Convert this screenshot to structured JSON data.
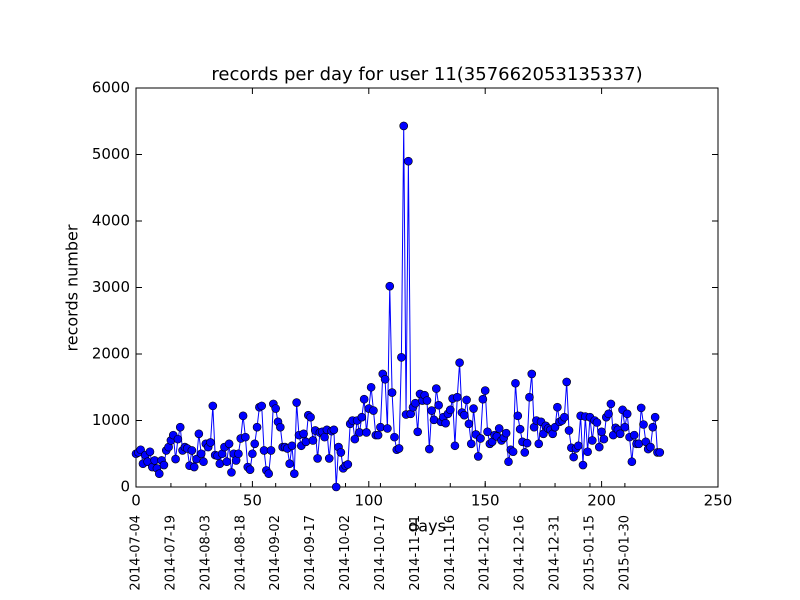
{
  "chart_data": {
    "type": "line",
    "title": "records per day for user 11(357662053135337)",
    "xlabel": "days",
    "ylabel": "records number",
    "color": "#0000ff",
    "x": [
      0,
      1,
      2,
      3,
      4,
      5,
      6,
      7,
      8,
      9,
      10,
      11,
      12,
      13,
      14,
      15,
      16,
      17,
      18,
      19,
      20,
      21,
      22,
      23,
      24,
      25,
      26,
      27,
      28,
      29,
      30,
      31,
      32,
      33,
      34,
      35,
      36,
      37,
      38,
      39,
      40,
      41,
      42,
      43,
      44,
      45,
      46,
      47,
      48,
      49,
      50,
      51,
      52,
      53,
      54,
      55,
      56,
      57,
      58,
      59,
      60,
      61,
      62,
      63,
      64,
      65,
      66,
      67,
      68,
      69,
      70,
      71,
      72,
      73,
      74,
      75,
      76,
      77,
      78,
      79,
      80,
      81,
      82,
      83,
      84,
      85,
      86,
      87,
      88,
      89,
      90,
      91,
      92,
      93,
      94,
      95,
      96,
      97,
      98,
      99,
      100,
      101,
      102,
      103,
      104,
      105,
      106,
      107,
      108,
      109,
      110,
      111,
      112,
      113,
      114,
      115,
      116,
      117,
      118,
      119,
      120,
      121,
      122,
      123,
      124,
      125,
      126,
      127,
      128,
      129,
      130,
      131,
      132,
      133,
      134,
      135,
      136,
      137,
      138,
      139,
      140,
      141,
      142,
      143,
      144,
      145,
      146,
      147,
      148,
      149,
      150,
      151,
      152,
      153,
      154,
      155,
      156,
      157,
      158,
      159,
      160,
      161,
      162,
      163,
      164,
      165,
      166,
      167,
      168,
      169,
      170,
      171,
      172,
      173,
      174,
      175,
      176,
      177,
      178,
      179,
      180,
      181,
      182,
      183,
      184,
      185,
      186,
      187,
      188,
      189,
      190,
      191,
      192,
      193,
      194,
      195,
      196,
      197,
      198,
      199,
      200,
      201,
      202,
      203,
      204,
      205,
      206,
      207,
      208,
      209,
      210,
      211,
      212,
      213,
      214,
      215,
      216,
      217,
      218,
      219,
      220,
      221,
      222,
      223,
      224,
      225
    ],
    "values": [
      500,
      520,
      560,
      350,
      480,
      380,
      530,
      300,
      400,
      280,
      200,
      400,
      330,
      550,
      600,
      700,
      780,
      420,
      720,
      900,
      550,
      600,
      580,
      320,
      550,
      300,
      420,
      800,
      500,
      380,
      650,
      600,
      670,
      1220,
      480,
      470,
      350,
      500,
      600,
      380,
      650,
      220,
      500,
      400,
      500,
      730,
      1070,
      750,
      300,
      260,
      500,
      650,
      900,
      1200,
      1220,
      550,
      250,
      200,
      550,
      1250,
      1180,
      980,
      900,
      600,
      600,
      580,
      350,
      620,
      200,
      1270,
      780,
      620,
      800,
      680,
      1080,
      1050,
      700,
      850,
      430,
      820,
      830,
      750,
      860,
      430,
      840,
      860,
      0,
      600,
      520,
      280,
      320,
      340,
      950,
      1000,
      720,
      1000,
      820,
      1050,
      1320,
      820,
      1180,
      1500,
      1150,
      780,
      780,
      900,
      1700,
      1620,
      880,
      3020,
      1420,
      750,
      560,
      580,
      1950,
      5430,
      1090,
      4900,
      1100,
      1200,
      1260,
      830,
      1400,
      1300,
      1380,
      1300,
      570,
      1150,
      1010,
      1480,
      1230,
      980,
      1050,
      960,
      1100,
      1160,
      1330,
      620,
      1350,
      1870,
      1120,
      1080,
      1310,
      950,
      650,
      1180,
      790,
      460,
      730,
      1320,
      1450,
      830,
      650,
      680,
      780,
      760,
      880,
      700,
      740,
      810,
      380,
      560,
      530,
      1560,
      1070,
      870,
      680,
      520,
      660,
      1350,
      1700,
      900,
      1000,
      650,
      980,
      800,
      920,
      880,
      860,
      800,
      900,
      1200,
      980,
      1000,
      1050,
      1580,
      850,
      590,
      450,
      580,
      620,
      1070,
      330,
      1060,
      530,
      1050,
      700,
      1000,
      970,
      600,
      830,
      720,
      1050,
      1100,
      1250,
      780,
      890,
      860,
      800,
      1160,
      900,
      1100,
      750,
      380,
      780,
      650,
      650,
      1190,
      940,
      680,
      570,
      600,
      900,
      1050,
      520,
      520
    ],
    "xlim": [
      0,
      250
    ],
    "ylim": [
      0,
      6000
    ],
    "xticks": [
      0,
      50,
      100,
      150,
      200,
      250
    ],
    "yticks": [
      0,
      1000,
      2000,
      3000,
      4000,
      5000,
      6000
    ],
    "date_ticks": [
      {
        "value": 0,
        "label": "2014-07-04"
      },
      {
        "value": 15,
        "label": "2014-07-19"
      },
      {
        "value": 30,
        "label": "2014-08-03"
      },
      {
        "value": 45,
        "label": "2014-08-18"
      },
      {
        "value": 60,
        "label": "2014-09-02"
      },
      {
        "value": 75,
        "label": "2014-09-17"
      },
      {
        "value": 90,
        "label": "2014-10-02"
      },
      {
        "value": 105,
        "label": "2014-10-17"
      },
      {
        "value": 120,
        "label": "2014-11-01"
      },
      {
        "value": 135,
        "label": "2014-11-16"
      },
      {
        "value": 150,
        "label": "2014-12-01"
      },
      {
        "value": 165,
        "label": "2014-12-16"
      },
      {
        "value": 180,
        "label": "2014-12-31"
      },
      {
        "value": 195,
        "label": "2015-01-15"
      },
      {
        "value": 210,
        "label": "2015-01-30"
      }
    ]
  }
}
